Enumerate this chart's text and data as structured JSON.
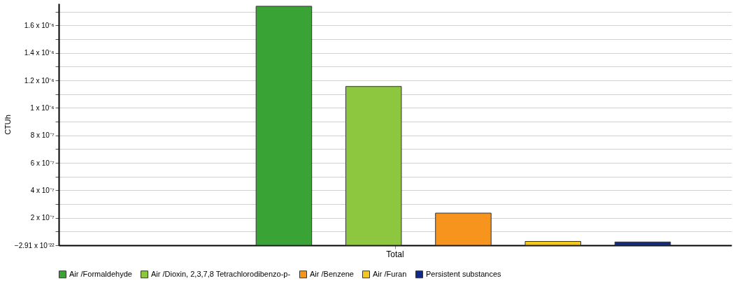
{
  "chart_data": {
    "type": "bar",
    "ylabel": "CTUh",
    "categories": [
      "Total"
    ],
    "series": [
      {
        "name": "Air /Formaldehyde",
        "color": "#3aa335",
        "values": [
          1.74e-06
        ]
      },
      {
        "name": "Air /Dioxin, 2,3,7,8 Tetrachlorodibenzo-p-",
        "color": "#8dc63f",
        "values": [
          1.156e-06
        ]
      },
      {
        "name": "Air /Benzene",
        "color": "#f7941d",
        "values": [
          2.34e-07
        ]
      },
      {
        "name": "Air /Furan",
        "color": "#f4c81e",
        "values": [
          2.8e-08
        ]
      },
      {
        "name": "Persistent substances",
        "color": "#0d2a8a",
        "values": [
          2.4e-08
        ]
      }
    ],
    "ylim": [
      -2.91e-22,
      1.76e-06
    ],
    "yticks": [
      {
        "value": -2.91e-22,
        "label": "−2.91 x 10⁻²²"
      },
      {
        "value": 1e-07,
        "label": null
      },
      {
        "value": 2e-07,
        "label": "2 x 10⁻⁷"
      },
      {
        "value": 3e-07,
        "label": null
      },
      {
        "value": 4e-07,
        "label": "4 x 10⁻⁷"
      },
      {
        "value": 5e-07,
        "label": null
      },
      {
        "value": 6e-07,
        "label": "6 x 10⁻⁷"
      },
      {
        "value": 7e-07,
        "label": null
      },
      {
        "value": 8e-07,
        "label": "8 x 10⁻⁷"
      },
      {
        "value": 9e-07,
        "label": null
      },
      {
        "value": 1e-06,
        "label": "1 x 10⁻⁶"
      },
      {
        "value": 1.1e-06,
        "label": null
      },
      {
        "value": 1.2e-06,
        "label": "1.2 x 10⁻⁶"
      },
      {
        "value": 1.3e-06,
        "label": null
      },
      {
        "value": 1.4e-06,
        "label": "1.4 x 10⁻⁶"
      },
      {
        "value": 1.5e-06,
        "label": null
      },
      {
        "value": 1.6e-06,
        "label": "1.6 x 10⁻⁶"
      },
      {
        "value": 1.7e-06,
        "label": null
      }
    ],
    "grid": "y",
    "legend": "bottom"
  }
}
